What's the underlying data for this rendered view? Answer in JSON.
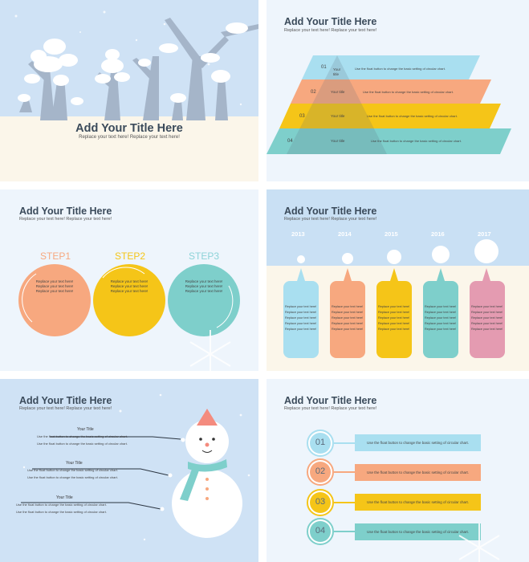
{
  "slide1": {
    "title": "Add Your Title Here",
    "subtitle": "Replace your text here!   Replace your text here!"
  },
  "slide2": {
    "title": "Add Your Title Here",
    "subtitle": "Replace your text here!   Replace your text here!",
    "layers": [
      {
        "num": "01",
        "label": "Your title",
        "text": "Use the float button to change the basic setting of circular chart.",
        "color": "#a9dff0"
      },
      {
        "num": "02",
        "label": "Your title",
        "text": "Use the float button to change the basic setting of circular chart.",
        "color": "#f7a87f"
      },
      {
        "num": "03",
        "label": "Your title",
        "text": "Use the float button to change the basic setting of circular chart.",
        "color": "#f5c518"
      },
      {
        "num": "04",
        "label": "Your title",
        "text": "Use the float button to change the basic setting of circular chart.",
        "color": "#7ecfcb"
      }
    ]
  },
  "slide3": {
    "title": "Add Your Title Here",
    "subtitle": "Replace your text here!   Replace your text here!",
    "steps": [
      {
        "label": "STEP1",
        "lines": [
          "Replace your text here!",
          "Replace your text here!",
          "Replace your text here!"
        ],
        "color": "#f7a87f",
        "label_color": "#f7a87f"
      },
      {
        "label": "STEP2",
        "lines": [
          "Replace your text here!",
          "Replace your text here!",
          "Replace your text here!"
        ],
        "color": "#f5c518",
        "label_color": "#f5c518"
      },
      {
        "label": "STEP3",
        "lines": [
          "Replace your text here!",
          "Replace your text here!",
          "Replace your text here!"
        ],
        "color": "#7ecfcb",
        "label_color": "#8dd3d8"
      }
    ]
  },
  "slide4": {
    "title": "Add Your Title Here",
    "subtitle": "Replace your text here!   Replace your text here!",
    "years": [
      {
        "year": "2013",
        "color": "#a9dff0"
      },
      {
        "year": "2014",
        "color": "#f7a87f"
      },
      {
        "year": "2015",
        "color": "#f5c518"
      },
      {
        "year": "2016",
        "color": "#7ecfcb"
      },
      {
        "year": "2017",
        "color": "#e49bb1"
      }
    ],
    "card_line": "Replace your text here!"
  },
  "slide5": {
    "title": "Add Your Title Here",
    "subtitle": "Replace your text here!   Replace your text here!",
    "items": [
      {
        "title": "Your Title",
        "lines": [
          "Use the float button to change the basic setting of circular chart.",
          "Use the float button to change the basic setting of circular chart."
        ]
      },
      {
        "title": "Your Title",
        "lines": [
          "Use the float button to change the basic setting of circular chart.",
          "Use the float button to change the basic setting of circular chart."
        ]
      },
      {
        "title": "Your Title",
        "lines": [
          "Use the float button to change the basic setting of circular chart.",
          "Use the float button to change the basic setting of circular chart."
        ]
      }
    ]
  },
  "slide6": {
    "title": "Add Your Title Here",
    "subtitle": "Replace your text here!   Replace your text here!",
    "items": [
      {
        "num": "01",
        "text": "Use the float button to change the basic setting of circular chart.",
        "color": "#a9dff0"
      },
      {
        "num": "02",
        "text": "Use the float button to change the basic setting of circular chart.",
        "color": "#f7a87f"
      },
      {
        "num": "03",
        "text": "Use the float button to change the basic setting of circular chart.",
        "color": "#f5c518"
      },
      {
        "num": "04",
        "text": "Use the float button to change the basic setting of circular chart.",
        "color": "#7ecfcb"
      }
    ]
  }
}
